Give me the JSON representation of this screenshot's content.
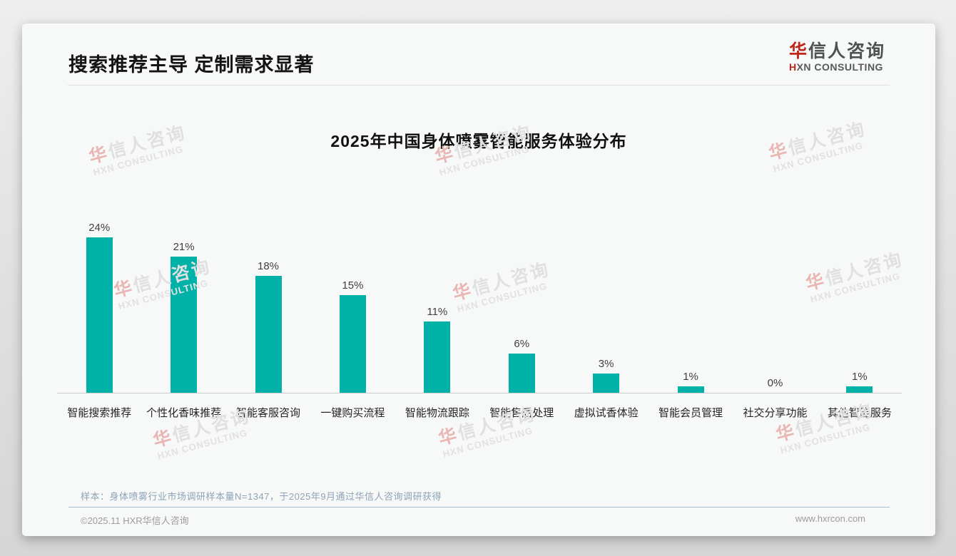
{
  "page": {
    "header_title": "搜索推荐主导 定制需求显著",
    "note": "样本：身体喷雾行业市场调研样本量N=1347，于2025年9月通过华信人咨询调研获得",
    "footer_left": "©2025.11 HXR华信人咨询",
    "footer_right": "www.hxrcon.com"
  },
  "logo": {
    "cn_first": "华",
    "cn_rest": "信人咨询",
    "en_first": "H",
    "en_rest": "XN CONSULTING"
  },
  "watermark": {
    "line1": "华信人咨询",
    "line2": "HXN CONSULTING"
  },
  "colors": {
    "bar": "#00b1a8",
    "accent_red": "#c0251b"
  },
  "chart_data": {
    "type": "bar",
    "title": "2025年中国身体喷雾智能服务体验分布",
    "categories": [
      "智能搜索推荐",
      "个性化香味推荐",
      "智能客服咨询",
      "一键购买流程",
      "智能物流跟踪",
      "智能售后处理",
      "虚拟试香体验",
      "智能会员管理",
      "社交分享功能",
      "其他智能服务"
    ],
    "values": [
      24,
      21,
      18,
      15,
      11,
      6,
      3,
      1,
      0,
      1
    ],
    "unit": "%",
    "value_label_format": "{v}%",
    "ylim": [
      0,
      26
    ],
    "grid": false,
    "legend": "none",
    "bar_color": "#00b1a8"
  }
}
